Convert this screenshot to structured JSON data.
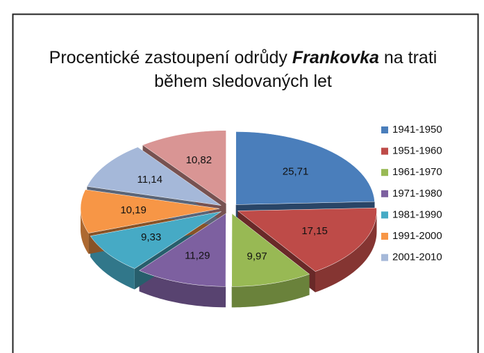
{
  "chart_data": {
    "type": "pie",
    "title": [
      "Procentické zastoupení odrůdy",
      "Frankovka",
      "na trati",
      "během sledovaných let"
    ],
    "categories": [
      "1941-1950",
      "1951-1960",
      "1961-1970",
      "1971-1980",
      "1981-1990",
      "1991-2000",
      "2001-2010",
      null
    ],
    "values": [
      25.71,
      17.15,
      9.97,
      11.29,
      9.33,
      10.19,
      11.14,
      10.82
    ],
    "value_labels": [
      "25,71",
      "17,15",
      "9,97",
      "11,29",
      "9,33",
      "10,19",
      "11,14",
      "10,82"
    ],
    "colors": [
      "#4a7ebb",
      "#be4b48",
      "#98b954",
      "#7d60a0",
      "#46aac5",
      "#f79646",
      "#a5b8d9",
      "#d99594"
    ],
    "legend": "right"
  }
}
